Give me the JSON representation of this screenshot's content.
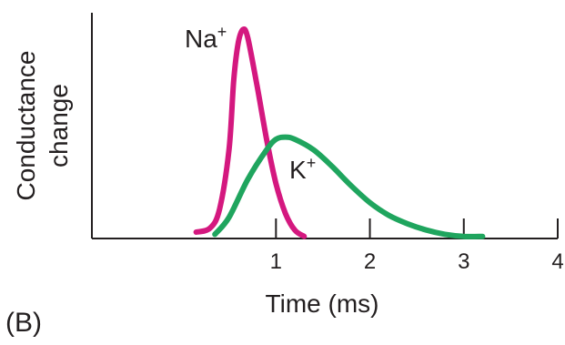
{
  "panel_label": "(B)",
  "chart_data": {
    "type": "line",
    "xlabel": "Time (ms)",
    "ylabel_lines": [
      "Conductance",
      "change"
    ],
    "xlim": [
      -0.96,
      4.0
    ],
    "ylim": [
      0,
      1
    ],
    "x_ticks": [
      1,
      2,
      3,
      4
    ],
    "x_tick_labels": [
      "1",
      "2",
      "3",
      "4"
    ],
    "grid": false,
    "series": [
      {
        "name": "Na",
        "label_base": "Na",
        "label_sup": "+",
        "color": "#d4187f",
        "x": [
          0.15,
          0.3,
          0.4,
          0.5,
          0.55,
          0.6,
          0.65,
          0.7,
          0.8,
          0.9,
          1.0,
          1.1,
          1.2,
          1.3
        ],
        "y": [
          0.03,
          0.05,
          0.14,
          0.42,
          0.75,
          0.93,
          0.99,
          0.95,
          0.72,
          0.47,
          0.26,
          0.12,
          0.04,
          0.01
        ]
      },
      {
        "name": "K",
        "label_base": "K",
        "label_sup": "+",
        "color": "#1fa55e",
        "x": [
          0.35,
          0.5,
          0.7,
          0.9,
          1.0,
          1.1,
          1.2,
          1.4,
          1.6,
          1.8,
          2.0,
          2.2,
          2.4,
          2.6,
          2.8,
          3.0,
          3.2
        ],
        "y": [
          0.02,
          0.1,
          0.28,
          0.42,
          0.47,
          0.48,
          0.47,
          0.42,
          0.34,
          0.25,
          0.17,
          0.11,
          0.07,
          0.04,
          0.02,
          0.01,
          0.01
        ]
      }
    ]
  }
}
